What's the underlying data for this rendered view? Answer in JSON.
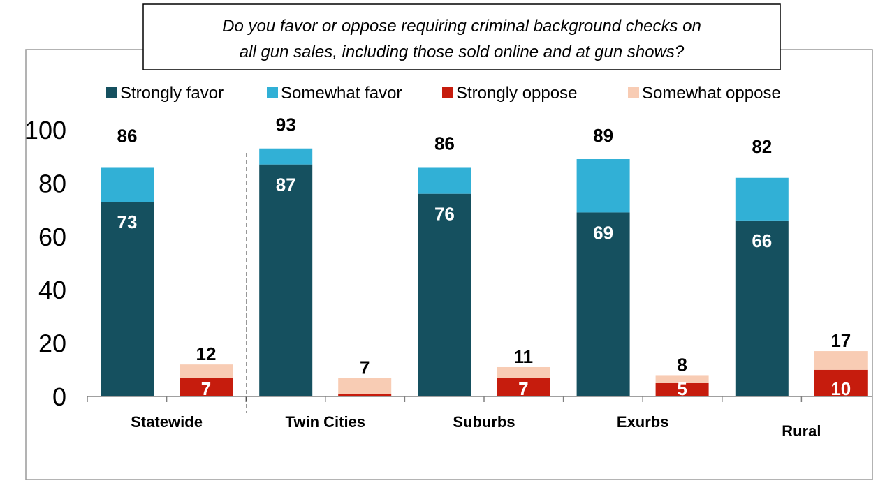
{
  "colors": {
    "strongly_favor": "#15505f",
    "somewhat_favor": "#31b0d6",
    "strongly_oppose": "#c61c0d",
    "somewhat_oppose": "#f8ccb4"
  },
  "chart_data": {
    "type": "bar",
    "title": "Do you favor or oppose requiring criminal background checks on all gun sales, including those sold online and at gun shows?",
    "title_lines": [
      "Do you favor or oppose requiring criminal background checks on",
      "all gun sales, including those sold online and at gun shows?"
    ],
    "categories": [
      "Statewide",
      "Twin Cities",
      "Suburbs",
      "Exurbs",
      "Rural"
    ],
    "ylim": [
      0,
      100
    ],
    "yticks": [
      0,
      20,
      40,
      60,
      80,
      100
    ],
    "legend_position": "top",
    "legend": [
      "Strongly favor",
      "Somewhat favor",
      "Strongly oppose",
      "Somewhat oppose"
    ],
    "favor_totals": [
      86,
      93,
      86,
      89,
      82
    ],
    "oppose_totals": [
      12,
      7,
      11,
      8,
      17
    ],
    "series": [
      {
        "name": "Strongly favor",
        "stack": "favor",
        "values": [
          73,
          87,
          76,
          69,
          66
        ]
      },
      {
        "name": "Somewhat favor",
        "stack": "favor",
        "values": [
          13,
          6,
          10,
          20,
          16
        ]
      },
      {
        "name": "Strongly oppose",
        "stack": "oppose",
        "values": [
          7,
          1,
          7,
          5,
          10
        ]
      },
      {
        "name": "Somewhat oppose",
        "stack": "oppose",
        "values": [
          5,
          6,
          4,
          3,
          7
        ]
      }
    ],
    "inner_labels_favor": [
      "73",
      "87",
      "76",
      "69",
      "66"
    ],
    "inner_labels_oppose": [
      "7",
      "",
      "7",
      "5",
      "10"
    ],
    "divider_after_category": "Statewide"
  }
}
